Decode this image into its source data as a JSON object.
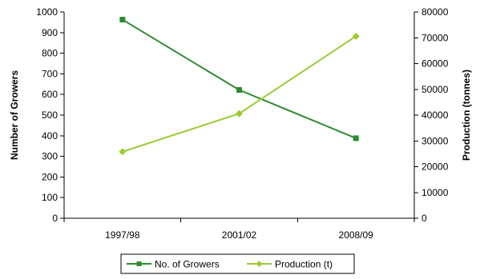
{
  "chart_data": {
    "type": "line",
    "categories": [
      "1997/98",
      "2001/02",
      "2008/09"
    ],
    "series": [
      {
        "name": "No. of Growers",
        "axis": "left",
        "values": [
          963,
          622,
          388
        ],
        "color": "#2e8b2e",
        "marker": "square"
      },
      {
        "name": "Production (t)",
        "axis": "right",
        "values": [
          25800,
          40600,
          70600
        ],
        "color": "#9acd32",
        "marker": "diamond"
      }
    ],
    "ylabel": "Number of Growers",
    "y2label": "Production (tonnes)",
    "ylim": [
      0,
      1000
    ],
    "y2lim": [
      0,
      80000
    ],
    "yticks": [
      0,
      100,
      200,
      300,
      400,
      500,
      600,
      700,
      800,
      900,
      1000
    ],
    "y2ticks": [
      0,
      10000,
      20000,
      30000,
      40000,
      50000,
      60000,
      70000,
      80000
    ],
    "grid": false,
    "legend": "bottom"
  }
}
